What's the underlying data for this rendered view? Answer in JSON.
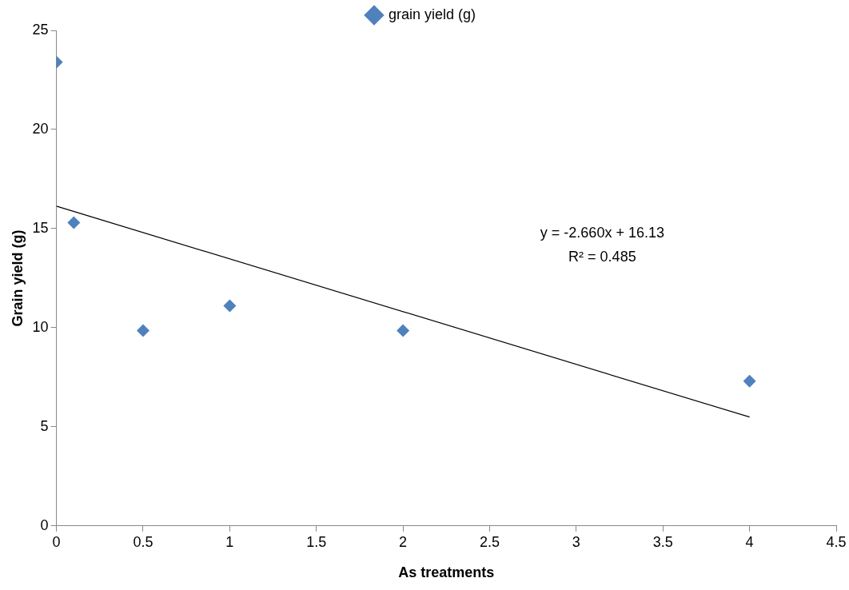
{
  "chart_data": {
    "type": "scatter",
    "xlabel": "As treatments",
    "ylabel": "Grain yield (g)",
    "x": [
      0,
      0.1,
      0.5,
      1,
      2,
      4
    ],
    "series": [
      {
        "name": "grain yield (g)",
        "color": "#4f81bd",
        "values": [
          23.4,
          15.3,
          9.85,
          11.1,
          9.85,
          7.3
        ]
      },
      {
        "type": "line",
        "color": "#000000",
        "x": [
          0,
          4
        ],
        "values": [
          16.13,
          5.49
        ],
        "marker": "none"
      }
    ],
    "xlim": [
      0,
      4.5
    ],
    "xticks": [
      0,
      0.5,
      1,
      1.5,
      2,
      2.5,
      3,
      3.5,
      4,
      4.5
    ],
    "ylim": [
      0,
      25
    ],
    "yticks": [
      0,
      5,
      10,
      15,
      20,
      25
    ],
    "annotations": [
      "y = -2.660x + 16.13",
      "R² = 0.485"
    ],
    "grid": false,
    "legend": "top",
    "marker": "diamond"
  }
}
